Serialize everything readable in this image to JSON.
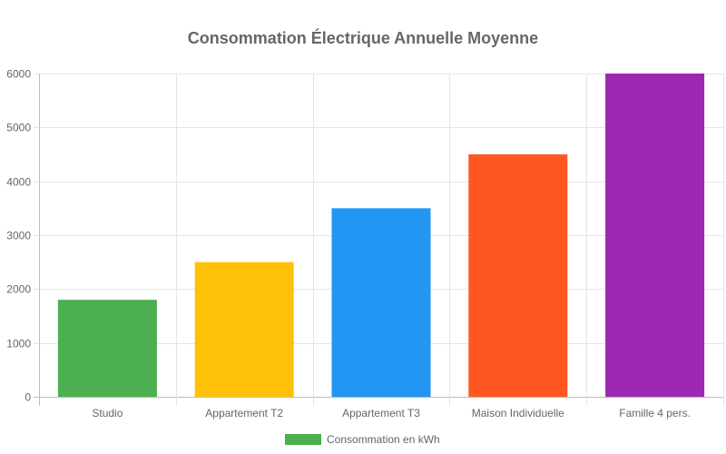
{
  "chart_data": {
    "type": "bar",
    "title": "Consommation Électrique Annuelle Moyenne",
    "categories": [
      "Studio",
      "Appartement T2",
      "Appartement T3",
      "Maison Individuelle",
      "Famille 4 pers."
    ],
    "series": [
      {
        "name": "Consommation en kWh",
        "values": [
          1800,
          2500,
          3500,
          4500,
          6000
        ],
        "colors": [
          "#4CAF50",
          "#FFC107",
          "#2196F3",
          "#FF5722",
          "#9C27B0"
        ]
      }
    ],
    "yticks": [
      0,
      1000,
      2000,
      3000,
      4000,
      5000,
      6000
    ],
    "ylim": [
      0,
      6000
    ],
    "xlabel": "",
    "ylabel": "",
    "grid": true,
    "legend_position": "bottom"
  }
}
